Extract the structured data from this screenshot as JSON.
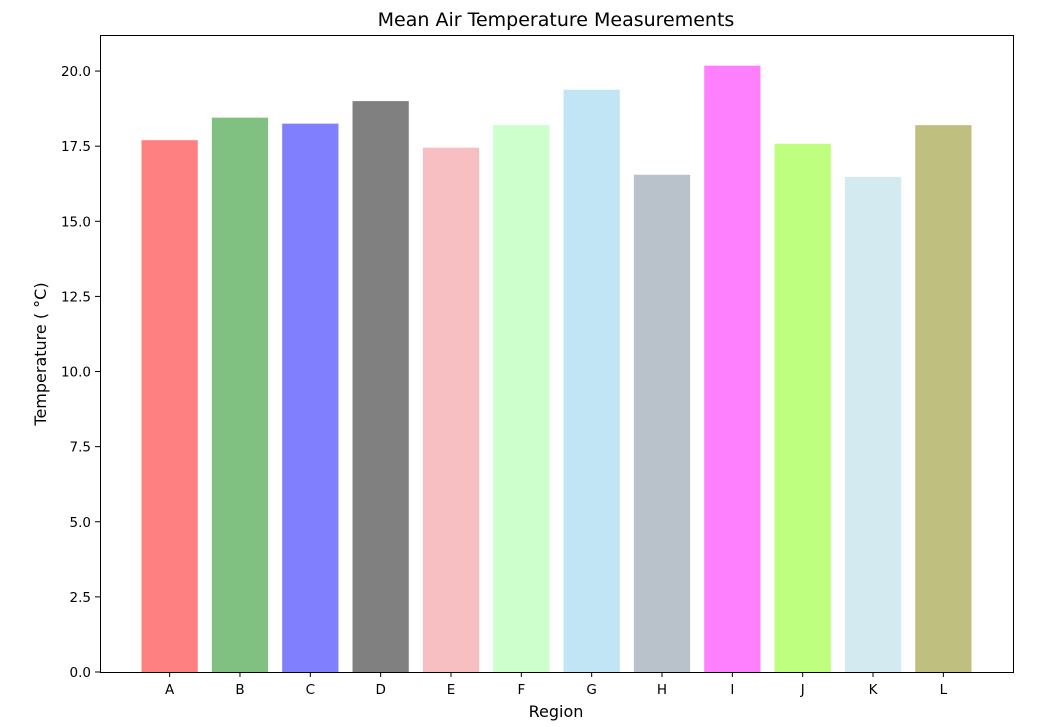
{
  "chart_data": {
    "type": "bar",
    "title": "Mean Air Temperature Measurements",
    "xlabel": "Region",
    "ylabel": "Temperature ($^\\circ$C)",
    "ylabel_display": "Temperature ( °C)",
    "categories": [
      "A",
      "B",
      "C",
      "D",
      "E",
      "F",
      "G",
      "H",
      "I",
      "J",
      "K",
      "L"
    ],
    "values": [
      17.7,
      18.45,
      18.25,
      19.0,
      17.45,
      18.2,
      19.38,
      16.55,
      20.18,
      17.58,
      16.48,
      18.2
    ],
    "colors": [
      "#ff8080",
      "#80c080",
      "#8080ff",
      "#808080",
      "#f7bfc1",
      "#ccffcc",
      "#c2e5f5",
      "#b9c1cb",
      "#ff80ff",
      "#bfff7f",
      "#d3eaf1",
      "#bfbf80"
    ],
    "ylim": [
      0,
      21.2
    ],
    "yticks": [
      0.0,
      2.5,
      5.0,
      7.5,
      10.0,
      12.5,
      15.0,
      17.5,
      20.0
    ],
    "grid": false,
    "legend": "none"
  }
}
